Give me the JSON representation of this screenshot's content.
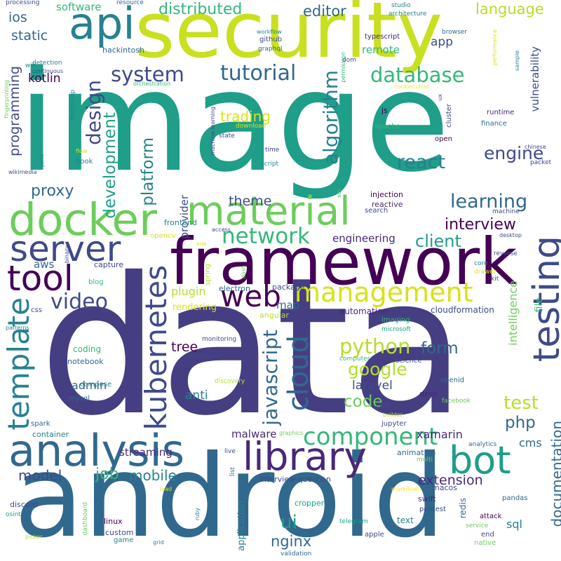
{
  "words": [
    {
      "text": "data",
      "color": "#463e82"
    },
    {
      "text": "image",
      "color": "#1f9e89"
    },
    {
      "text": "android",
      "color": "#31688e"
    },
    {
      "text": "security",
      "color": "#c8e020"
    },
    {
      "text": "framework",
      "color": "#440154"
    },
    {
      "text": "docker",
      "color": "#6ccd5a"
    },
    {
      "text": "api",
      "color": "#26828e"
    },
    {
      "text": "analysis",
      "color": "#31688e"
    },
    {
      "text": "material",
      "color": "#6ccd5a"
    },
    {
      "text": "server",
      "color": "#3e4a89"
    },
    {
      "text": "library",
      "color": "#482878"
    },
    {
      "text": "bot",
      "color": "#1f9e89"
    },
    {
      "text": "tool",
      "color": "#440154"
    },
    {
      "text": "testing",
      "color": "#3e4a89"
    },
    {
      "text": "template",
      "color": "#26828e"
    },
    {
      "text": "kubernetes",
      "color": "#3e4a89"
    },
    {
      "text": "web",
      "color": "#440154"
    },
    {
      "text": "management",
      "color": "#d8e219"
    },
    {
      "text": "cloud",
      "color": "#31688e"
    },
    {
      "text": "component",
      "color": "#35b779"
    },
    {
      "text": "network",
      "color": "#35b779"
    },
    {
      "text": "javascript",
      "color": "#31688e"
    },
    {
      "text": "python",
      "color": "#b5de2b"
    },
    {
      "text": "video",
      "color": "#3e4a89"
    },
    {
      "text": "system",
      "color": "#3e4a89"
    },
    {
      "text": "database",
      "color": "#35b779"
    },
    {
      "text": "tutorial",
      "color": "#31688e"
    },
    {
      "text": "algorithm",
      "color": "#26828e"
    },
    {
      "text": "design",
      "color": "#3e4a89"
    },
    {
      "text": "development",
      "color": "#1f9e89"
    },
    {
      "text": "platform",
      "color": "#26828e"
    },
    {
      "text": "distributed",
      "color": "#35b779"
    },
    {
      "text": "editor",
      "color": "#31688e"
    },
    {
      "text": "language",
      "color": "#b5de2b"
    },
    {
      "text": "react",
      "color": "#26828e"
    },
    {
      "text": "engine",
      "color": "#3e4a89"
    },
    {
      "text": "learning",
      "color": "#31688e"
    },
    {
      "text": "interview",
      "color": "#440154"
    },
    {
      "text": "client",
      "color": "#1f9e89"
    },
    {
      "text": "engineering",
      "color": "#482878"
    },
    {
      "text": "documentation",
      "color": "#31688e"
    },
    {
      "text": "google",
      "color": "#b5de2b"
    },
    {
      "text": "code",
      "color": "#6ccd5a"
    },
    {
      "text": "form",
      "color": "#31688e"
    },
    {
      "text": "test",
      "color": "#b5de2b"
    },
    {
      "text": "php",
      "color": "#31688e"
    },
    {
      "text": "ui",
      "color": "#1f9e89"
    },
    {
      "text": "laravel",
      "color": "#3e4a89"
    },
    {
      "text": "nginx",
      "color": "#31688e"
    },
    {
      "text": "extension",
      "color": "#482878"
    },
    {
      "text": "mobile",
      "color": "#26828e"
    },
    {
      "text": "job",
      "color": "#35b779"
    },
    {
      "text": "model",
      "color": "#3e4a89"
    },
    {
      "text": "streaming",
      "color": "#482878"
    },
    {
      "text": "proxy",
      "color": "#31688e"
    },
    {
      "text": "theme",
      "color": "#3e4a89"
    },
    {
      "text": "trading",
      "color": "#d8e219"
    },
    {
      "text": "programming",
      "color": "#3e4a89"
    },
    {
      "text": "static",
      "color": "#31688e"
    },
    {
      "text": "ios",
      "color": "#31688e"
    },
    {
      "text": "kotlin",
      "color": "#440154"
    },
    {
      "text": "tree",
      "color": "#440154"
    },
    {
      "text": "plugin",
      "color": "#b5de2b"
    },
    {
      "text": "anti",
      "color": "#26828e"
    },
    {
      "text": "admin",
      "color": "#31688e"
    },
    {
      "text": "intelligence",
      "color": "#6ccd5a"
    },
    {
      "text": "vulnerability",
      "color": "#3e4a89"
    },
    {
      "text": "xamarin",
      "color": "#482878"
    },
    {
      "text": "cms",
      "color": "#31688e"
    },
    {
      "text": "malware",
      "color": "#482878"
    },
    {
      "text": "app",
      "color": "#3e4a89"
    },
    {
      "text": "remote",
      "color": "#35b779"
    },
    {
      "text": "sql",
      "color": "#26828e"
    },
    {
      "text": "software",
      "color": "#35b779"
    },
    {
      "text": "file",
      "color": "#35b779"
    },
    {
      "text": "map",
      "color": "#31688e"
    },
    {
      "text": "aws",
      "color": "#31688e"
    },
    {
      "text": "provider",
      "color": "#3e4a89"
    },
    {
      "text": "rendering",
      "color": "#d8e219"
    },
    {
      "text": "automation",
      "color": "#482878"
    },
    {
      "text": "cloudformation",
      "color": "#3e4a89"
    },
    {
      "text": "coding",
      "color": "#35b779"
    },
    {
      "text": "notebook",
      "color": "#31688e"
    },
    {
      "text": "compose",
      "color": "#26828e"
    },
    {
      "text": "mysql",
      "color": "#31688e"
    },
    {
      "text": "monitoring",
      "color": "#3e4a89"
    },
    {
      "text": "integration",
      "color": "#3e4a89"
    },
    {
      "text": "discovery",
      "color": "#b5de2b"
    },
    {
      "text": "angular",
      "color": "#b5de2b"
    },
    {
      "text": "electron",
      "color": "#31688e"
    },
    {
      "text": "package",
      "color": "#3e4a89"
    },
    {
      "text": "imaging",
      "color": "#35b779"
    },
    {
      "text": "microsoft",
      "color": "#1f9e89"
    },
    {
      "text": "computer",
      "color": "#35b779"
    },
    {
      "text": "science",
      "color": "#3e4a89"
    },
    {
      "text": "openid",
      "color": "#31688e"
    },
    {
      "text": "deep",
      "color": "#482878"
    },
    {
      "text": "json",
      "color": "#3e4a89"
    },
    {
      "text": "jupyter",
      "color": "#3e4a89"
    },
    {
      "text": "builder",
      "color": "#b5de2b"
    },
    {
      "text": "facebook",
      "color": "#6ccd5a"
    },
    {
      "text": "animation",
      "color": "#31688e"
    },
    {
      "text": "multi",
      "color": "#6ccd5a"
    },
    {
      "text": "analytics",
      "color": "#31688e"
    },
    {
      "text": "interview question",
      "color": "#3e4a89"
    },
    {
      "text": "macos",
      "color": "#3e4a89"
    },
    {
      "text": "swift",
      "color": "#482878"
    },
    {
      "text": "pentest",
      "color": "#3e4a89"
    },
    {
      "text": "redis",
      "color": "#31688e"
    },
    {
      "text": "attack",
      "color": "#440154"
    },
    {
      "text": "service",
      "color": "#6ccd5a"
    },
    {
      "text": "native",
      "color": "#6ccd5a"
    },
    {
      "text": "end",
      "color": "#3e4a89"
    },
    {
      "text": "text",
      "color": "#26828e"
    },
    {
      "text": "git",
      "color": "#31688e"
    },
    {
      "text": "apple",
      "color": "#3e4a89"
    },
    {
      "text": "telegram",
      "color": "#1f9e89"
    },
    {
      "text": "cropper",
      "color": "#1f9e89"
    },
    {
      "text": "application",
      "color": "#26828e"
    },
    {
      "text": "validation",
      "color": "#31688e"
    },
    {
      "text": "pandas",
      "color": "#31688e"
    },
    {
      "text": "linux",
      "color": "#440154"
    },
    {
      "text": "custom",
      "color": "#3e4a89"
    },
    {
      "text": "game",
      "color": "#26828e"
    },
    {
      "text": "grid",
      "color": "#26828e"
    },
    {
      "text": "dashboard",
      "color": "#6ccd5a"
    },
    {
      "text": "ruby",
      "color": "#26828e"
    },
    {
      "text": "discord",
      "color": "#3e4a89"
    },
    {
      "text": "osint",
      "color": "#1f9e89"
    },
    {
      "text": "picker",
      "color": "#b5de2b"
    },
    {
      "text": "load",
      "color": "#d8e219"
    },
    {
      "text": "markdown",
      "color": "#fde725"
    },
    {
      "text": "live",
      "color": "#3e4a89"
    },
    {
      "text": "list",
      "color": "#31688e"
    },
    {
      "text": "graphics",
      "color": "#6ccd5a"
    },
    {
      "text": "spark",
      "color": "#31688e"
    },
    {
      "text": "container",
      "color": "#26828e"
    },
    {
      "text": "patterns",
      "color": "#26828e"
    },
    {
      "text": "css",
      "color": "#3e4a89"
    },
    {
      "text": "blog",
      "color": "#35b779"
    },
    {
      "text": "capture",
      "color": "#3e4a89"
    },
    {
      "text": "binary",
      "color": "#3e4a89"
    },
    {
      "text": "spring",
      "color": "#b5de2b"
    },
    {
      "text": "dash",
      "color": "#6ccd5a"
    },
    {
      "text": "vue",
      "color": "#d8e219"
    },
    {
      "text": "access",
      "color": "#3e4a89"
    },
    {
      "text": "opencv",
      "color": "#d8e219"
    },
    {
      "text": "frontend",
      "color": "#26828e"
    },
    {
      "text": "machine",
      "color": "#3e4a89"
    },
    {
      "text": "search",
      "color": "#3e4a89"
    },
    {
      "text": "reactive",
      "color": "#482878"
    },
    {
      "text": "injection",
      "color": "#440154"
    },
    {
      "text": "sdk",
      "color": "#35b779"
    },
    {
      "text": "desktop",
      "color": "#3e4a89"
    },
    {
      "text": "reverse",
      "color": "#3e4a89"
    },
    {
      "text": "kit",
      "color": "#3e4a89"
    },
    {
      "text": "drawer",
      "color": "#d8e219"
    },
    {
      "text": "core",
      "color": "#26828e"
    },
    {
      "text": "packet",
      "color": "#3e4a89"
    },
    {
      "text": "chinese",
      "color": "#3e4a89"
    },
    {
      "text": "finance",
      "color": "#31688e"
    },
    {
      "text": "runtime",
      "color": "#482878"
    },
    {
      "text": "open",
      "color": "#440154"
    },
    {
      "text": "apache",
      "color": "#35b779"
    },
    {
      "text": "cluster",
      "color": "#3e4a89"
    },
    {
      "text": "js",
      "color": "#440154"
    },
    {
      "text": "ux",
      "color": "#3e4a89"
    },
    {
      "text": "cookiecutter",
      "color": "#fde725"
    },
    {
      "text": "permission",
      "color": "#35b779"
    },
    {
      "text": "typescript",
      "color": "#482878"
    },
    {
      "text": "browser",
      "color": "#31688e"
    },
    {
      "text": "performance",
      "color": "#d8e219"
    },
    {
      "text": "sample",
      "color": "#26828e"
    },
    {
      "text": "studio",
      "color": "#26828e"
    },
    {
      "text": "architecture",
      "color": "#26828e"
    },
    {
      "text": "resource",
      "color": "#31688e"
    },
    {
      "text": "workflow",
      "color": "#26828e"
    },
    {
      "text": "github",
      "color": "#3e4a89"
    },
    {
      "text": "graphql",
      "color": "#31688e"
    },
    {
      "text": "dom",
      "color": "#3e4a89"
    },
    {
      "text": "orchestration",
      "color": "#35b779"
    },
    {
      "text": "hackintosh",
      "color": "#31688e"
    },
    {
      "text": "processing",
      "color": "#3e4a89"
    },
    {
      "text": "detection",
      "color": "#26828e"
    },
    {
      "text": "wifi",
      "color": "#26828e"
    },
    {
      "text": "continuous",
      "color": "#3e4a89"
    },
    {
      "text": "fingerprinting",
      "color": "#6ccd5a"
    },
    {
      "text": "bootstrap",
      "color": "#26828e"
    },
    {
      "text": "book",
      "color": "#26828e"
    },
    {
      "text": "junit",
      "color": "#26828e"
    },
    {
      "text": "flow",
      "color": "#d8e219"
    },
    {
      "text": "wikimedia",
      "color": "#3e4a89"
    },
    {
      "text": "machine learning",
      "color": "#3e4a89"
    },
    {
      "text": "state",
      "color": "#3e4a89"
    },
    {
      "text": "download",
      "color": "#d8e219"
    },
    {
      "text": "time",
      "color": "#3e4a89"
    },
    {
      "text": "script",
      "color": "#26828e"
    }
  ]
}
